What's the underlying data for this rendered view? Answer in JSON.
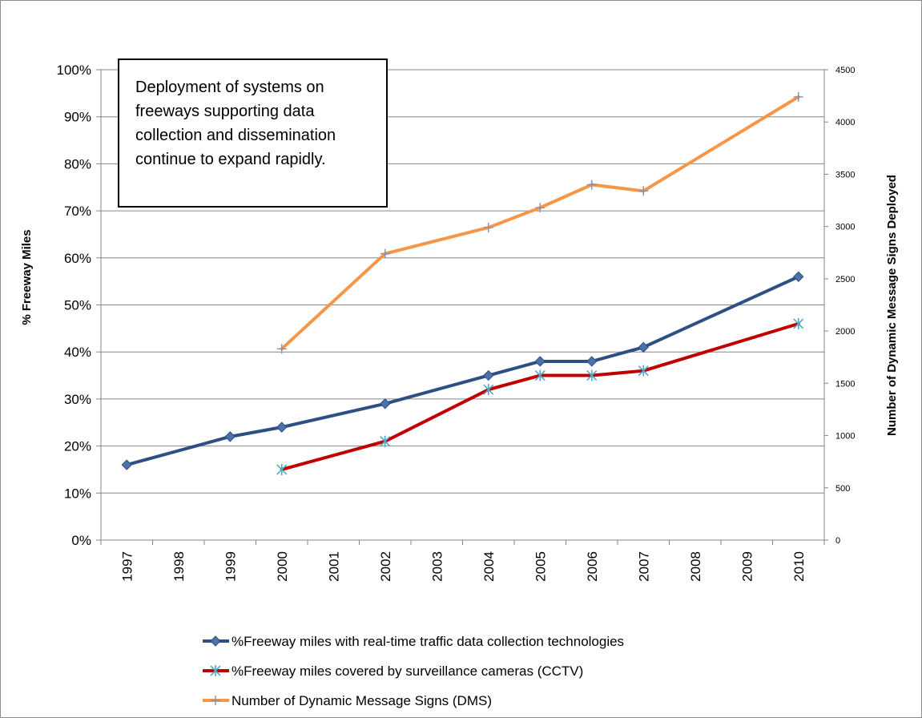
{
  "chart_data": {
    "type": "line",
    "annotation_lines": [
      "Deployment of systems on",
      "freeways supporting data",
      "collection and dissemination",
      "continue to expand rapidly."
    ],
    "categories": [
      "1997",
      "1998",
      "1999",
      "2000",
      "2001",
      "2002",
      "2003",
      "2004",
      "2005",
      "2006",
      "2007",
      "2008",
      "2009",
      "2010"
    ],
    "ylabel_left": "% Freeway Miles",
    "ylabel_right": "Number of Dynamic Message Signs Deployed",
    "ylim_left": [
      0,
      100
    ],
    "ylim_right": [
      0,
      4500
    ],
    "yticks_left": [
      "0%",
      "10%",
      "20%",
      "30%",
      "40%",
      "50%",
      "60%",
      "70%",
      "80%",
      "90%",
      "100%"
    ],
    "yticks_right": [
      "0",
      "500",
      "1000",
      "1500",
      "2000",
      "2500",
      "3000",
      "3500",
      "4000",
      "4500"
    ],
    "grid": true,
    "legend_position": "bottom",
    "series": [
      {
        "name": "%Freeway miles with real-time traffic data collection technologies",
        "axis": "left",
        "color": "#2e4f82",
        "marker": "diamond",
        "points": [
          [
            "1997",
            16
          ],
          [
            "1999",
            22
          ],
          [
            "2000",
            24
          ],
          [
            "2002",
            29
          ],
          [
            "2004",
            35
          ],
          [
            "2005",
            38
          ],
          [
            "2006",
            38
          ],
          [
            "2007",
            41
          ],
          [
            "2010",
            56
          ]
        ]
      },
      {
        "name": "%Freeway miles covered by surveillance cameras (CCTV)",
        "axis": "left",
        "color": "#c00000",
        "marker": "star",
        "points": [
          [
            "2000",
            15
          ],
          [
            "2002",
            21
          ],
          [
            "2004",
            32
          ],
          [
            "2005",
            35
          ],
          [
            "2006",
            35
          ],
          [
            "2007",
            36
          ],
          [
            "2010",
            46
          ]
        ]
      },
      {
        "name": "Number of Dynamic Message Signs (DMS)",
        "axis": "right",
        "color": "#f79646",
        "marker": "plus",
        "points": [
          [
            "2000",
            1830
          ],
          [
            "2002",
            2740
          ],
          [
            "2004",
            2990
          ],
          [
            "2005",
            3180
          ],
          [
            "2006",
            3400
          ],
          [
            "2007",
            3340
          ],
          [
            "2010",
            4240
          ]
        ]
      }
    ]
  }
}
